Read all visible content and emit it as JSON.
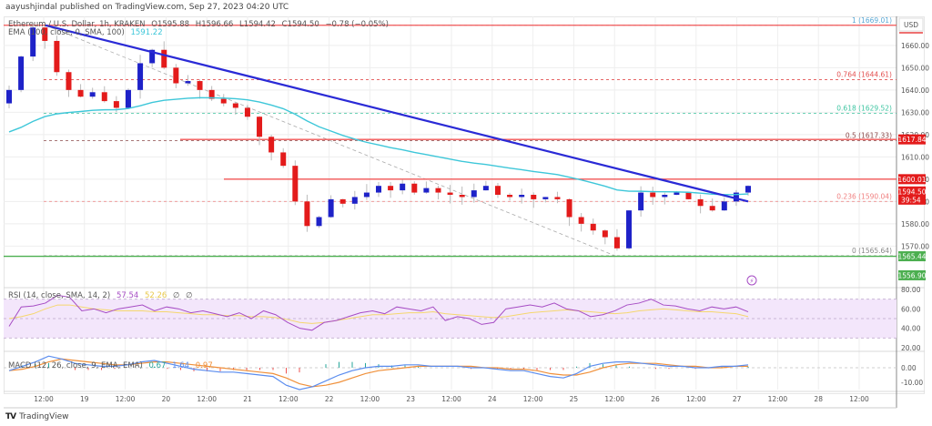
{
  "header": {
    "published": "aayushjindal published on TradingView.com, Sep 27, 2023 04:20 UTC",
    "symbol": "Ethereum / U.S. Dollar, 1h, KRAKEN",
    "open": "O1595.88",
    "high": "H1596.66",
    "low": "L1594.42",
    "close": "C1594.50",
    "change": "−0.78 (−0.05%)",
    "ema_label": "EMA (100, close, 0, SMA, 100)",
    "ema_value": "1591.22"
  },
  "rsi_legend": {
    "label": "RSI (14, close, SMA, 14, 2)",
    "rsi": "57.54",
    "sma": "52.26",
    "x1": "∅",
    "x2": "∅"
  },
  "macd_legend": {
    "label": "MACD (12, 26, close, 9, EMA, EMA)",
    "hist": "0.67",
    "macd": "1.64",
    "signal": "0.97"
  },
  "axis": {
    "currency": "USD"
  },
  "footer": {
    "brand": "TradingView",
    "logo": "TV"
  },
  "colors": {
    "up": "#1e22c8",
    "down": "#e31b1b",
    "ema": "#3ec7d9",
    "trendline": "#2a2ad6",
    "resistance": "#f25555",
    "support": "#4caf50",
    "rsi": "#a64cc4",
    "rsi_sma": "#f5d76e",
    "macd": "#5b8def",
    "signal": "#f0903a",
    "hist_pos": "#26a69a",
    "hist_neg": "#ef5350"
  },
  "chart_data": [
    {
      "type": "candlestick",
      "title": "Ethereum / U.S. Dollar, 1h, KRAKEN",
      "ylim": [
        1553,
        1673
      ],
      "y_ticks": [
        1570,
        1580,
        1590,
        1600,
        1610,
        1620,
        1630,
        1640,
        1650,
        1660
      ],
      "x_ticks": [
        "12:00",
        "19",
        "12:00",
        "20",
        "12:00",
        "21",
        "12:00",
        "22",
        "12:00",
        "23",
        "12:00",
        "24",
        "12:00",
        "25",
        "12:00",
        "26",
        "12:00",
        "27",
        "12:00",
        "28",
        "12:00"
      ],
      "price_labels": [
        {
          "value": "1617.84",
          "price": 1617.84,
          "color": "#e31b1b"
        },
        {
          "value": "1600.01",
          "price": 1600.01,
          "color": "#e31b1b"
        },
        {
          "value": "1594.50",
          "sub": "39:54",
          "price": 1594.5,
          "color": "#e31b1b"
        },
        {
          "value": "1565.44",
          "price": 1565.44,
          "color": "#4caf50"
        },
        {
          "value": "1556.90",
          "price": 1556.9,
          "color": "#4caf50"
        }
      ],
      "fibonacci": [
        {
          "level": "1",
          "price": 1669.01,
          "label": "1 (1669.01)",
          "color": "#5aa9d6"
        },
        {
          "level": "0.764",
          "price": 1644.61,
          "label": "0.764 (1644.61)",
          "color": "#e35050"
        },
        {
          "level": "0.618",
          "price": 1629.52,
          "label": "0.618 (1629.52)",
          "color": "#3cc4a0"
        },
        {
          "level": "0.5",
          "price": 1617.33,
          "label": "0.5 (1617.33)",
          "color": "#8c4a4a"
        },
        {
          "level": "0.236",
          "price": 1590.04,
          "label": "0.236 (1590.04)",
          "color": "#f08080"
        },
        {
          "level": "0",
          "price": 1565.64,
          "label": "0 (1565.64)",
          "color": "#888888"
        }
      ],
      "horizontal_lines": [
        {
          "name": "resistance-1617",
          "price": 1617.84,
          "x_start": 198
        },
        {
          "name": "resistance-1600",
          "price": 1600.01,
          "x_start": 246
        },
        {
          "name": "support-1565",
          "price": 1565.44,
          "x_start": 4
        }
      ],
      "trendline": {
        "from": [
          50,
          1669
        ],
        "to": [
          822,
          1590
        ]
      },
      "close_series": [
        1640,
        1655,
        1668,
        1662,
        1648,
        1640,
        1637,
        1639,
        1635,
        1632,
        1640,
        1652,
        1658,
        1650,
        1643,
        1644,
        1640,
        1636,
        1634,
        1632,
        1628,
        1619,
        1612,
        1606,
        1590,
        1579,
        1583,
        1591,
        1589,
        1592,
        1594,
        1597,
        1595,
        1598,
        1594,
        1596,
        1594,
        1593,
        1592,
        1595,
        1597,
        1593,
        1592,
        1593,
        1591,
        1592,
        1591,
        1583,
        1580,
        1577,
        1574,
        1569,
        1586,
        1594,
        1592,
        1593,
        1594,
        1591,
        1588,
        1586,
        1590,
        1594,
        1597
      ]
    },
    {
      "type": "line",
      "title": "RSI (14, close, SMA, 14, 2)",
      "ylim": [
        20,
        80
      ],
      "y_ticks": [
        20,
        40,
        60,
        80
      ],
      "band": [
        30,
        70
      ],
      "series": [
        {
          "name": "RSI",
          "values": [
            42,
            62,
            63,
            66,
            74,
            72,
            58,
            60,
            56,
            60,
            62,
            64,
            58,
            62,
            60,
            56,
            58,
            55,
            52,
            56,
            50,
            58,
            54,
            46,
            40,
            38,
            46,
            48,
            52,
            56,
            58,
            55,
            62,
            60,
            58,
            62,
            48,
            52,
            50,
            44,
            46,
            60,
            62,
            64,
            62,
            66,
            60,
            58,
            52,
            54,
            58,
            64,
            66,
            70,
            64,
            63,
            60,
            58,
            62,
            60,
            62,
            57
          ]
        },
        {
          "name": "RSI-SMA",
          "values": [
            50,
            52,
            55,
            60,
            64,
            64,
            62,
            60,
            59,
            58,
            58,
            58,
            57,
            57,
            56,
            55,
            54,
            54,
            53,
            53,
            52,
            52,
            51,
            49,
            46,
            45,
            46,
            48,
            50,
            52,
            54,
            54,
            55,
            56,
            56,
            57,
            55,
            54,
            53,
            52,
            51,
            52,
            54,
            56,
            57,
            58,
            59,
            58,
            57,
            56,
            55,
            56,
            58,
            59,
            60,
            59,
            58,
            57,
            57,
            56,
            55,
            52
          ]
        }
      ]
    },
    {
      "type": "line",
      "title": "MACD (12, 26, close, 9, EMA, EMA)",
      "ylim": [
        -15,
        10
      ],
      "y_ticks": [
        -10,
        0
      ],
      "series": [
        {
          "name": "MACD",
          "values": [
            -2,
            1,
            4,
            8,
            6,
            3,
            2,
            1,
            1,
            2,
            4,
            5,
            3,
            1,
            -1,
            -2,
            -3,
            -3,
            -4,
            -5,
            -6,
            -12,
            -15,
            -13,
            -9,
            -5,
            -2,
            0,
            1,
            1,
            2,
            2,
            1,
            1,
            1,
            0,
            0,
            -1,
            -2,
            -2,
            -4,
            -6,
            -7,
            -4,
            1,
            3,
            4,
            4,
            3,
            2,
            1,
            1,
            0,
            0,
            1,
            1,
            2
          ]
        },
        {
          "name": "Signal",
          "values": [
            -2,
            -1,
            1,
            4,
            6,
            5,
            4,
            3,
            2,
            2,
            3,
            4,
            4,
            3,
            2,
            1,
            0,
            -1,
            -2,
            -3,
            -4,
            -7,
            -11,
            -13,
            -12,
            -10,
            -7,
            -4,
            -2,
            -1,
            0,
            1,
            1,
            1,
            1,
            1,
            0,
            0,
            -1,
            -1,
            -2,
            -4,
            -5,
            -5,
            -3,
            0,
            2,
            3,
            3,
            3,
            2,
            1,
            1,
            0,
            0,
            1,
            1
          ]
        }
      ]
    }
  ]
}
